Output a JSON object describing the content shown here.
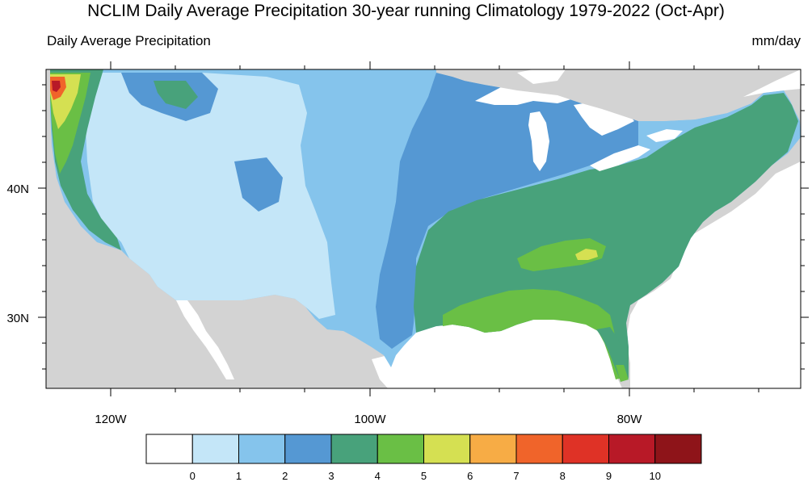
{
  "title": "NCLIM Daily Average Precipitation 30-year running Climatology 1979-2022 (Oct-Apr)",
  "subtitle_left": "Daily Average Precipitation",
  "subtitle_right": "mm/day",
  "map": {
    "region": "Contiguous United States",
    "lon_range": [
      -125,
      -66
    ],
    "lat_range": [
      24.5,
      49.5
    ],
    "lon_ticks": [
      {
        "value": -120,
        "label": "120W"
      },
      {
        "value": -100,
        "label": "100W"
      },
      {
        "value": -80,
        "label": "80W"
      }
    ],
    "lat_ticks": [
      {
        "value": 40,
        "label": "40N"
      },
      {
        "value": 30,
        "label": "30N"
      }
    ]
  },
  "colorbar": {
    "levels": [
      "0",
      "1",
      "2",
      "3",
      "4",
      "5",
      "6",
      "7",
      "8",
      "9",
      "10"
    ],
    "colors": [
      "#ffffff",
      "#c4e6f8",
      "#85c4ec",
      "#5598d3",
      "#48a27b",
      "#6abf45",
      "#d5e052",
      "#f7ac45",
      "#f0642a",
      "#df3226",
      "#b81927",
      "#8e1419"
    ]
  },
  "colors": {
    "land_outside": "#d3d3d3",
    "water": "#ffffff"
  }
}
